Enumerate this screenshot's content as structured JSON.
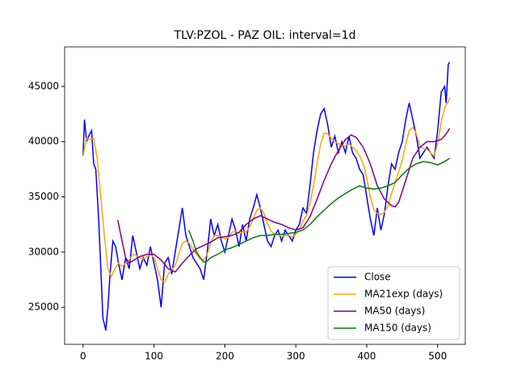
{
  "chart_data": {
    "type": "line",
    "title": "TLV:PZOL - PAZ OIL: interval=1d",
    "xlim": [
      -26,
      539
    ],
    "ylim": [
      21650,
      48580
    ],
    "xticks": [
      0,
      100,
      200,
      300,
      400,
      500
    ],
    "yticks": [
      25000,
      30000,
      35000,
      40000,
      45000
    ],
    "legend": "lower right",
    "series": [
      {
        "name": "Close",
        "color": "#0000ff",
        "x": [
          0,
          2,
          5,
          8,
          12,
          15,
          18,
          22,
          25,
          28,
          30,
          32,
          35,
          38,
          42,
          46,
          50,
          55,
          60,
          65,
          70,
          75,
          80,
          85,
          90,
          95,
          100,
          105,
          110,
          115,
          120,
          125,
          130,
          135,
          140,
          145,
          150,
          155,
          160,
          165,
          170,
          175,
          180,
          185,
          190,
          195,
          200,
          205,
          210,
          215,
          220,
          225,
          230,
          235,
          240,
          245,
          250,
          255,
          260,
          265,
          270,
          275,
          280,
          285,
          290,
          295,
          300,
          305,
          310,
          315,
          320,
          325,
          330,
          335,
          340,
          345,
          350,
          355,
          360,
          365,
          370,
          375,
          380,
          385,
          390,
          395,
          400,
          405,
          410,
          415,
          420,
          425,
          430,
          435,
          440,
          445,
          450,
          455,
          460,
          465,
          470,
          475,
          480,
          485,
          490,
          495,
          500,
          505,
          510,
          512,
          515,
          517
        ],
        "values": [
          38700,
          42000,
          40000,
          40500,
          41000,
          38000,
          37500,
          33000,
          28500,
          24000,
          23500,
          22900,
          25000,
          28000,
          31000,
          30500,
          29000,
          27500,
          29500,
          28500,
          31500,
          30000,
          28500,
          29500,
          28800,
          30500,
          29000,
          27500,
          25000,
          29000,
          29500,
          28000,
          30000,
          32000,
          34000,
          31500,
          30500,
          29500,
          29000,
          28500,
          27500,
          30000,
          33000,
          31500,
          32500,
          31000,
          30000,
          31500,
          33000,
          32000,
          30500,
          32500,
          31000,
          33000,
          34000,
          35200,
          34000,
          32500,
          31000,
          30500,
          31500,
          32000,
          31000,
          32000,
          31500,
          31000,
          32000,
          32500,
          34000,
          33500,
          36000,
          39000,
          41000,
          42500,
          43000,
          41500,
          39500,
          40500,
          39000,
          40000,
          39000,
          40500,
          39000,
          38500,
          37500,
          37000,
          35000,
          33000,
          31500,
          34000,
          32000,
          33500,
          36000,
          38000,
          37500,
          39000,
          40000,
          42000,
          43500,
          42000,
          40500,
          38500,
          39000,
          39500,
          39000,
          38500,
          41000,
          44500,
          45000,
          43500,
          47000,
          47200
        ]
      },
      {
        "name": "MA21exp (days)",
        "color": "#ffa500",
        "x": [
          0,
          5,
          10,
          15,
          20,
          25,
          30,
          35,
          40,
          45,
          50,
          55,
          60,
          65,
          70,
          75,
          80,
          85,
          90,
          95,
          100,
          105,
          110,
          115,
          120,
          125,
          130,
          135,
          140,
          145,
          150,
          155,
          160,
          165,
          170,
          175,
          180,
          185,
          190,
          195,
          200,
          205,
          210,
          215,
          220,
          225,
          230,
          235,
          240,
          245,
          250,
          255,
          260,
          265,
          270,
          275,
          280,
          285,
          290,
          295,
          300,
          305,
          310,
          315,
          320,
          325,
          330,
          335,
          340,
          345,
          350,
          355,
          360,
          365,
          370,
          375,
          380,
          385,
          390,
          395,
          400,
          405,
          410,
          415,
          420,
          425,
          430,
          435,
          440,
          445,
          450,
          455,
          460,
          465,
          470,
          475,
          480,
          485,
          490,
          495,
          500,
          505,
          510,
          515,
          517
        ],
        "values": [
          38700,
          40300,
          40200,
          40300,
          38500,
          35000,
          31500,
          28500,
          27800,
          28500,
          29000,
          28700,
          29000,
          29300,
          29800,
          29700,
          29500,
          29400,
          29600,
          29800,
          29500,
          28500,
          27500,
          27300,
          28000,
          28400,
          28800,
          29800,
          30800,
          31000,
          30800,
          30300,
          29800,
          29400,
          29300,
          29800,
          30800,
          31500,
          31500,
          31400,
          31200,
          31300,
          31800,
          31900,
          31700,
          31800,
          31800,
          32300,
          33000,
          33800,
          34000,
          33500,
          32600,
          31900,
          31600,
          31600,
          31400,
          31500,
          31500,
          31400,
          31600,
          32000,
          32800,
          33300,
          34400,
          36000,
          38000,
          39800,
          40800,
          40700,
          40300,
          40000,
          39800,
          39700,
          39600,
          39800,
          39500,
          39200,
          38700,
          38000,
          36700,
          35000,
          33800,
          33500,
          33400,
          33600,
          34200,
          35300,
          36300,
          37300,
          38300,
          39800,
          41000,
          41300,
          40700,
          39600,
          39400,
          39300,
          39000,
          38700,
          39800,
          41800,
          43100,
          43600,
          44000
        ]
      },
      {
        "name": "MA50 (days)",
        "color": "#800080",
        "x": [
          49,
          55,
          60,
          65,
          70,
          80,
          90,
          100,
          110,
          120,
          130,
          140,
          150,
          160,
          170,
          180,
          190,
          200,
          210,
          220,
          230,
          240,
          250,
          260,
          270,
          280,
          290,
          300,
          310,
          320,
          330,
          340,
          350,
          360,
          370,
          378,
          385,
          395,
          405,
          415,
          425,
          435,
          440,
          445,
          455,
          465,
          475,
          485,
          495,
          505,
          512,
          517
        ],
        "values": [
          32900,
          31000,
          29500,
          29000,
          29200,
          29600,
          29800,
          29800,
          29300,
          28500,
          28200,
          29000,
          29700,
          30300,
          30600,
          30900,
          31300,
          31400,
          31500,
          31800,
          32500,
          33000,
          33300,
          33000,
          32700,
          32500,
          32200,
          32000,
          32200,
          33200,
          34800,
          36500,
          38000,
          39200,
          40200,
          40600,
          40400,
          39500,
          38000,
          36000,
          34800,
          34200,
          34100,
          34500,
          36500,
          38500,
          39500,
          40000,
          40000,
          40200,
          40700,
          41200
        ]
      },
      {
        "name": "MA150 (days)",
        "color": "#008000",
        "x": [
          149,
          155,
          160,
          165,
          170,
          175,
          180,
          190,
          200,
          210,
          220,
          230,
          240,
          250,
          260,
          270,
          280,
          290,
          300,
          310,
          320,
          330,
          340,
          350,
          360,
          370,
          380,
          390,
          400,
          410,
          420,
          430,
          440,
          450,
          460,
          470,
          480,
          490,
          500,
          510,
          517
        ],
        "values": [
          32000,
          31000,
          30000,
          29500,
          29100,
          29200,
          29500,
          29800,
          30200,
          30400,
          30700,
          31000,
          31300,
          31500,
          31500,
          31600,
          31600,
          31700,
          31800,
          32000,
          32500,
          33200,
          33800,
          34400,
          34900,
          35300,
          35700,
          36000,
          35800,
          35700,
          35800,
          36000,
          36300,
          37000,
          37600,
          38000,
          38200,
          38100,
          37900,
          38200,
          38500
        ]
      }
    ]
  }
}
